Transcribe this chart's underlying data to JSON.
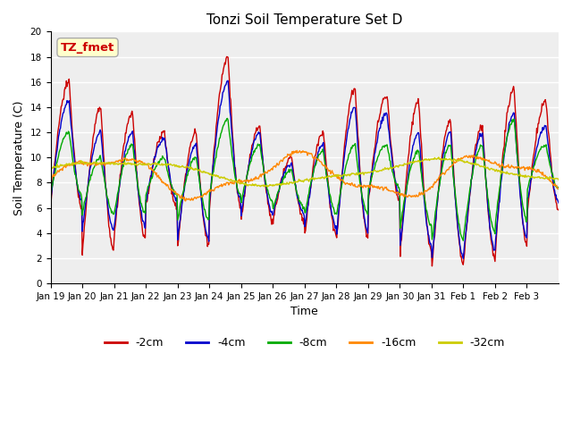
{
  "title": "Tonzi Soil Temperature Set D",
  "xlabel": "Time",
  "ylabel": "Soil Temperature (C)",
  "ylim": [
    0,
    20
  ],
  "yticks": [
    0,
    2,
    4,
    6,
    8,
    10,
    12,
    14,
    16,
    18,
    20
  ],
  "annotation_text": "TZ_fmet",
  "annotation_color": "#cc0000",
  "annotation_bg": "#ffffcc",
  "annotation_border": "#aaaaaa",
  "series_colors": [
    "#cc0000",
    "#0000cc",
    "#00aa00",
    "#ff8800",
    "#cccc00"
  ],
  "series_labels": [
    "-2cm",
    "-4cm",
    "-8cm",
    "-16cm",
    "-32cm"
  ],
  "fig_facecolor": "#ffffff",
  "plot_facecolor": "#eeeeee",
  "grid_color": "#ffffff",
  "tick_labels": [
    "Jan 19",
    "Jan 20",
    "Jan 21",
    "Jan 22",
    "Jan 23",
    "Jan 24",
    "Jan 25",
    "Jan 26",
    "Jan 27",
    "Jan 28",
    "Jan 29",
    "Jan 30",
    "Jan 31",
    "Feb 1",
    "Feb 2",
    "Feb 3"
  ],
  "title_fontsize": 11,
  "label_fontsize": 9,
  "tick_fontsize": 7.5,
  "legend_fontsize": 9,
  "linewidth": 1.0
}
